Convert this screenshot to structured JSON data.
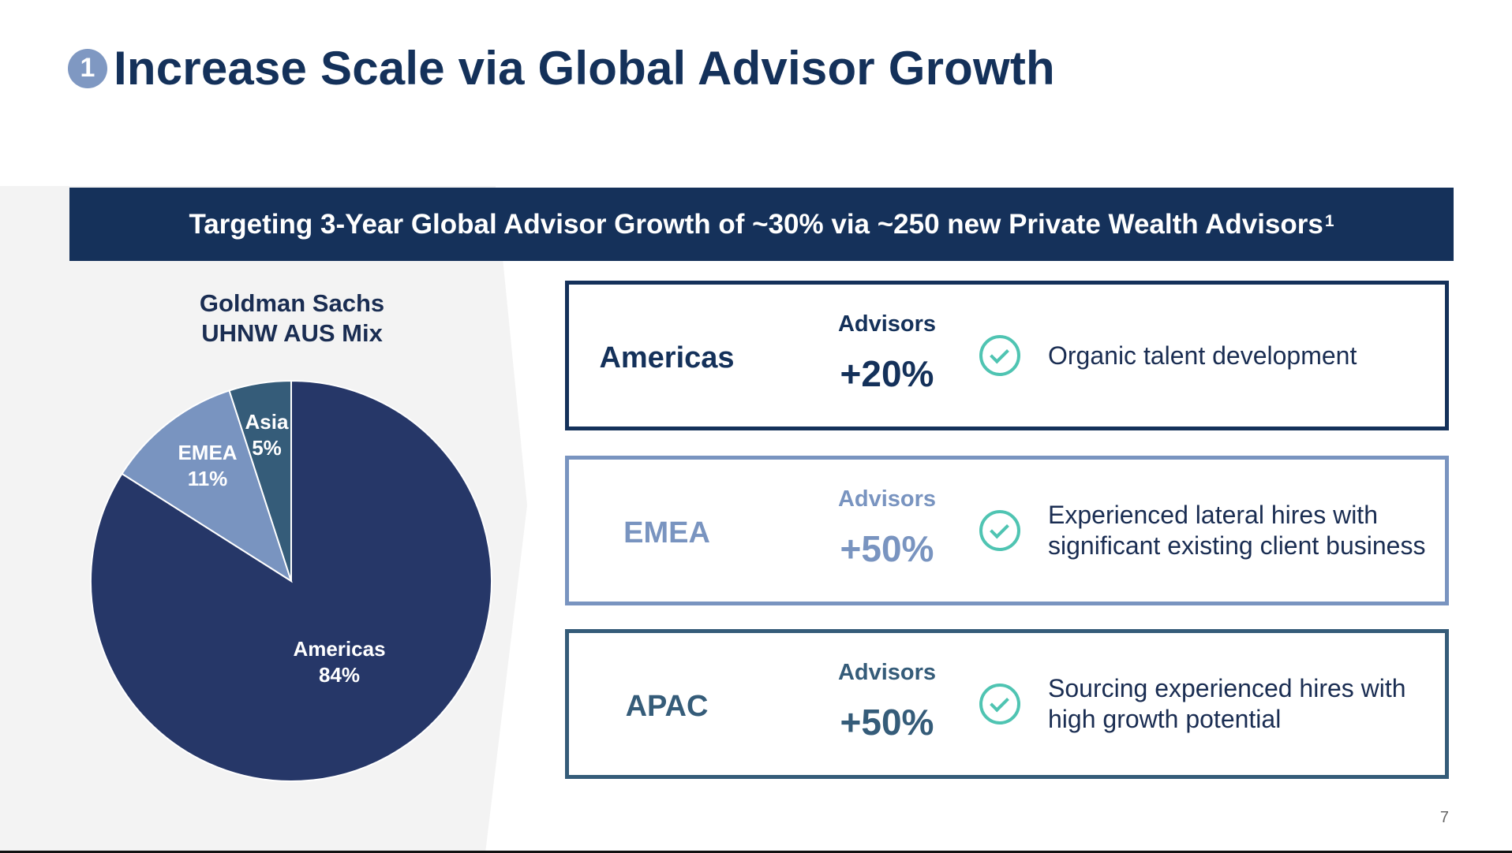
{
  "header": {
    "badge": "1",
    "title": "Increase Scale via Global Advisor Growth"
  },
  "banner": {
    "text": "Targeting 3-Year Global Advisor Growth of ~30% via ~250 new Private Wealth Advisors",
    "footnote": "1"
  },
  "pie": {
    "title_line1": "Goldman Sachs",
    "title_line2": "UHNW AUS Mix"
  },
  "chart_data": {
    "type": "pie",
    "title": "Goldman Sachs UHNW AUS Mix",
    "slices": [
      {
        "label": "Americas",
        "value": 84,
        "value_label": "84%",
        "color": "#263768"
      },
      {
        "label": "EMEA",
        "value": 11,
        "value_label": "11%",
        "color": "#7994c0"
      },
      {
        "label": "Asia",
        "value": 5,
        "value_label": "5%",
        "color": "#355c79"
      }
    ],
    "start": "12 o'clock",
    "direction": "clockwise"
  },
  "regions": [
    {
      "name": "Americas",
      "advisors_label": "Advisors",
      "growth": "+20%",
      "description_line1": "Organic talent development",
      "description_line2": "",
      "color": "#14315a",
      "icon": "check-circle-icon"
    },
    {
      "name": "EMEA",
      "advisors_label": "Advisors",
      "growth": "+50%",
      "description_line1": "Experienced lateral hires with",
      "description_line2": "significant existing client business",
      "color": "#7994c0",
      "icon": "check-circle-icon"
    },
    {
      "name": "APAC",
      "advisors_label": "Advisors",
      "growth": "+50%",
      "description_line1": "Sourcing experienced hires with",
      "description_line2": "high growth potential",
      "color": "#355c79",
      "icon": "check-circle-icon"
    }
  ],
  "footer": {
    "page_number": "7"
  }
}
